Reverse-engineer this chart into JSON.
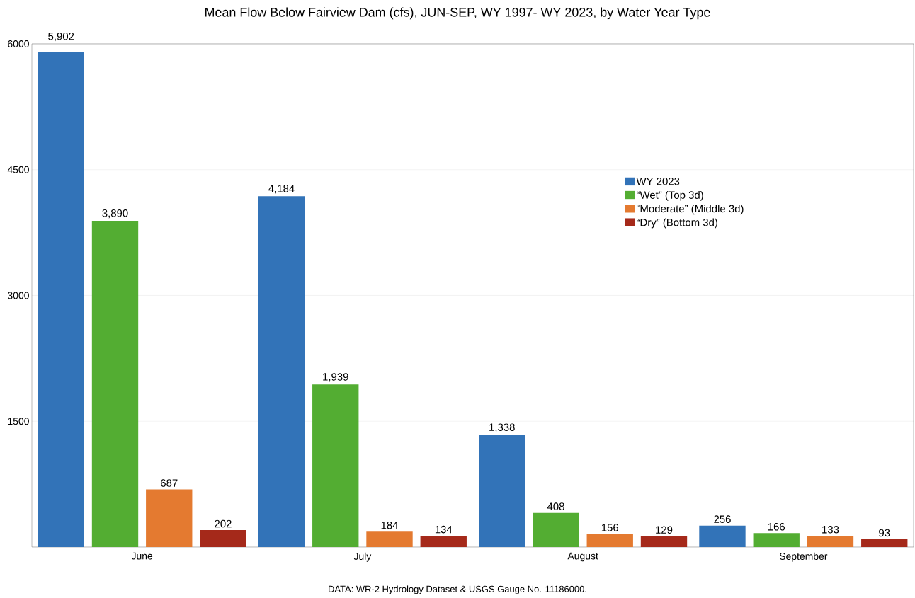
{
  "chart_data": {
    "type": "bar",
    "title": "Mean Flow Below Fairview Dam (cfs), JUN-SEP, WY 1997- WY 2023, by Water Year Type",
    "categories": [
      "June",
      "July",
      "August",
      "September"
    ],
    "series": [
      {
        "name": "WY 2023",
        "color": "#3273b8",
        "values": [
          5902,
          4184,
          1338,
          256
        ],
        "value_labels": [
          "5,902",
          "4,184",
          "1,338",
          "256"
        ]
      },
      {
        "name": "“Wet” (Top 3d)",
        "color": "#53ad32",
        "values": [
          3890,
          1939,
          408,
          166
        ],
        "value_labels": [
          "3,890",
          "1,939",
          "408",
          "166"
        ]
      },
      {
        "name": "“Moderate” (Middle 3d)",
        "color": "#e47a30",
        "values": [
          687,
          184,
          156,
          133
        ],
        "value_labels": [
          "687",
          "184",
          "156",
          "133"
        ]
      },
      {
        "name": "“Dry” (Bottom 3d)",
        "color": "#a5291a",
        "values": [
          202,
          134,
          129,
          93
        ],
        "value_labels": [
          "202",
          "134",
          "129",
          "93"
        ]
      }
    ],
    "ylim": [
      0,
      6000
    ],
    "yticks": [
      1500,
      3000,
      4500,
      6000
    ],
    "grid": "y",
    "legend": "right",
    "annotations": [
      "DATA: WR-2 Hydrology Dataset & USGS Gauge No. 11186000."
    ]
  }
}
